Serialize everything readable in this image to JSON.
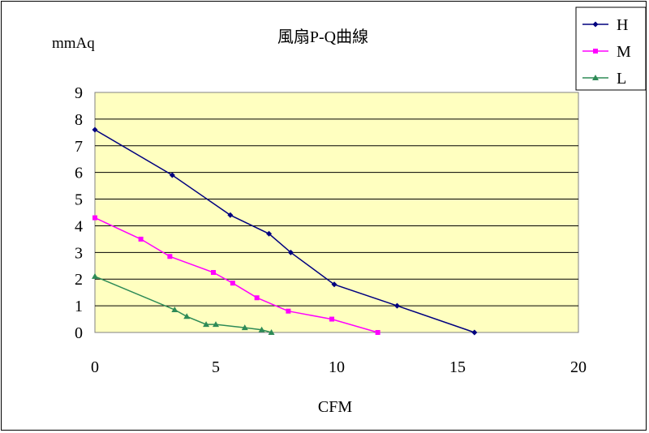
{
  "chart_data": {
    "type": "line",
    "title": "風扇P-Q曲線",
    "ylabel": "mmAq",
    "xlabel": "CFM",
    "xlim": [
      0,
      20
    ],
    "ylim": [
      0,
      9
    ],
    "xticks": [
      "0",
      "5",
      "10",
      "15",
      "20"
    ],
    "yticks": [
      "0",
      "1",
      "2",
      "3",
      "4",
      "5",
      "6",
      "7",
      "8",
      "9"
    ],
    "grid": "horizontal",
    "plot_background": "#ffffc0",
    "legend_position": "top-right",
    "series": [
      {
        "name": "H",
        "color": "#00007f",
        "marker": "diamond",
        "points": [
          [
            0,
            7.6
          ],
          [
            3.2,
            5.9
          ],
          [
            5.6,
            4.4
          ],
          [
            7.2,
            3.7
          ],
          [
            8.1,
            3.0
          ],
          [
            9.9,
            1.8
          ],
          [
            12.5,
            1.0
          ],
          [
            15.7,
            0.0
          ]
        ]
      },
      {
        "name": "M",
        "color": "#ff00ff",
        "marker": "square",
        "points": [
          [
            0,
            4.3
          ],
          [
            1.9,
            3.5
          ],
          [
            3.1,
            2.85
          ],
          [
            4.9,
            2.25
          ],
          [
            5.7,
            1.85
          ],
          [
            6.7,
            1.3
          ],
          [
            8.0,
            0.8
          ],
          [
            9.8,
            0.5
          ],
          [
            11.7,
            0.0
          ]
        ]
      },
      {
        "name": "L",
        "color": "#2e8b57",
        "marker": "triangle",
        "points": [
          [
            0,
            2.1
          ],
          [
            3.3,
            0.85
          ],
          [
            3.8,
            0.6
          ],
          [
            4.6,
            0.3
          ],
          [
            5.0,
            0.3
          ],
          [
            6.2,
            0.18
          ],
          [
            6.9,
            0.1
          ],
          [
            7.3,
            0.0
          ]
        ]
      }
    ]
  }
}
